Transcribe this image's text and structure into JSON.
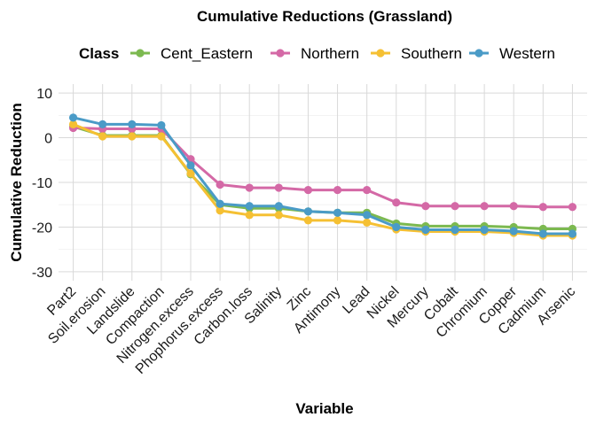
{
  "chart_data": {
    "type": "line",
    "title": "Cumulative Reductions (Grassland)",
    "xlabel": "Variable",
    "ylabel": "Cumulative Reduction",
    "legend_title": "Class",
    "legend_position": "top",
    "grid": true,
    "ylim": [
      -32,
      12
    ],
    "yticks": [
      10,
      0,
      -10,
      -20,
      -30
    ],
    "categories": [
      "Part2",
      "Soil.erosion",
      "Landslide",
      "Compaction",
      "Nitrogen.excess",
      "Phophorus.excess",
      "Carbon.loss",
      "Salinity",
      "Zinc",
      "Antimony",
      "Lead",
      "Nickel",
      "Mercury",
      "Cobalt",
      "Chromium",
      "Copper",
      "Cadmium",
      "Arsenic"
    ],
    "series": [
      {
        "name": "Cent_Eastern",
        "color": "#7cb950",
        "values": [
          2.5,
          0.5,
          0.5,
          0.5,
          -8.2,
          -15.0,
          -15.8,
          -15.8,
          -16.5,
          -16.8,
          -16.8,
          -19.2,
          -19.8,
          -19.8,
          -19.8,
          -20.0,
          -20.4,
          -20.4
        ]
      },
      {
        "name": "Northern",
        "color": "#d469a6",
        "values": [
          2.2,
          2.0,
          2.0,
          2.0,
          -4.8,
          -10.5,
          -11.2,
          -11.2,
          -11.7,
          -11.7,
          -11.7,
          -14.5,
          -15.3,
          -15.3,
          -15.3,
          -15.3,
          -15.5,
          -15.5
        ]
      },
      {
        "name": "Southern",
        "color": "#f5c033",
        "values": [
          3.0,
          0.3,
          0.3,
          0.3,
          -8.0,
          -16.3,
          -17.3,
          -17.3,
          -18.5,
          -18.5,
          -19.0,
          -20.5,
          -21.0,
          -21.0,
          -21.0,
          -21.3,
          -21.9,
          -21.9
        ]
      },
      {
        "name": "Western",
        "color": "#4a9bc7",
        "values": [
          4.5,
          3.0,
          3.0,
          2.8,
          -6.2,
          -14.8,
          -15.3,
          -15.3,
          -16.5,
          -16.8,
          -17.3,
          -20.0,
          -20.6,
          -20.6,
          -20.6,
          -20.9,
          -21.5,
          -21.5
        ]
      }
    ]
  }
}
